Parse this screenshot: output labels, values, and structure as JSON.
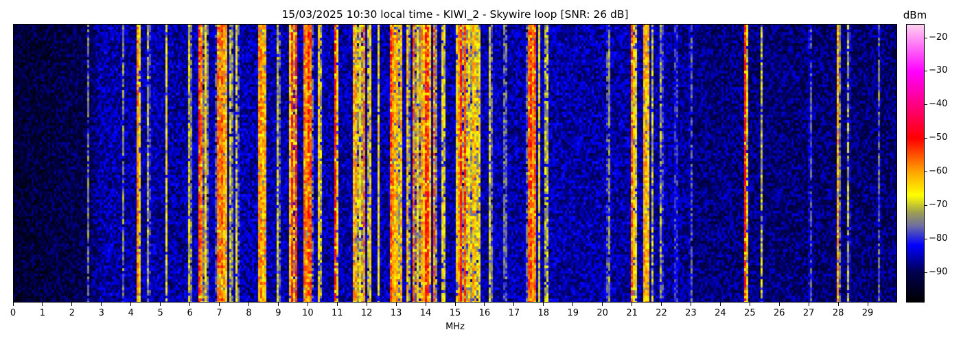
{
  "chart_data": {
    "type": "heatmap",
    "title": "15/03/2025 10:30 local time - KIWI_2 - Skywire loop [SNR: 26 dB]",
    "xlabel": "MHz",
    "xlim": [
      0,
      30
    ],
    "x_ticks": [
      "0",
      "1",
      "2",
      "3",
      "4",
      "5",
      "6",
      "7",
      "8",
      "9",
      "10",
      "11",
      "12",
      "13",
      "14",
      "15",
      "16",
      "17",
      "18",
      "19",
      "20",
      "21",
      "22",
      "23",
      "24",
      "25",
      "26",
      "27",
      "28",
      "29"
    ],
    "colorbar": {
      "label": "dBm",
      "range": [
        -99,
        -16
      ],
      "ticks": [
        "−20",
        "−30",
        "−40",
        "−50",
        "−60",
        "−70",
        "−80",
        "−90"
      ],
      "tick_values": [
        -20,
        -30,
        -40,
        -50,
        -60,
        -70,
        -80,
        -90
      ],
      "colormap": [
        [
          -99,
          "#000000"
        ],
        [
          -90,
          "#000050"
        ],
        [
          -82,
          "#0000ff"
        ],
        [
          -76,
          "#7070a0"
        ],
        [
          -72,
          "#a0a050"
        ],
        [
          -67,
          "#ffff00"
        ],
        [
          -60,
          "#ffa500"
        ],
        [
          -50,
          "#ff0000"
        ],
        [
          -40,
          "#ff0080"
        ],
        [
          -30,
          "#ff00ff"
        ],
        [
          -16,
          "#ffd0f0"
        ]
      ]
    },
    "noise_floor_dbm": [
      [
        0,
        -93
      ],
      [
        2.5,
        -91
      ],
      [
        3,
        -86
      ],
      [
        22,
        -86
      ],
      [
        23,
        -88
      ],
      [
        30,
        -89
      ]
    ],
    "signals_mhz_dbm": [
      [
        2.55,
        -76
      ],
      [
        3.75,
        -74
      ],
      [
        4.25,
        -55
      ],
      [
        4.6,
        -70
      ],
      [
        5.2,
        -66
      ],
      [
        6.0,
        -65
      ],
      [
        6.33,
        -54
      ],
      [
        6.4,
        -56
      ],
      [
        6.55,
        -62
      ],
      [
        6.95,
        -56
      ],
      [
        7.05,
        -54
      ],
      [
        7.12,
        -52
      ],
      [
        7.2,
        -56
      ],
      [
        7.4,
        -66
      ],
      [
        7.6,
        -66
      ],
      [
        8.38,
        -55
      ],
      [
        8.45,
        -54
      ],
      [
        8.55,
        -60
      ],
      [
        9.0,
        -66
      ],
      [
        9.45,
        -50
      ],
      [
        9.6,
        -51
      ],
      [
        9.9,
        -56
      ],
      [
        10.0,
        -50
      ],
      [
        10.1,
        -55
      ],
      [
        10.4,
        -61
      ],
      [
        10.95,
        -50
      ],
      [
        11.6,
        -55
      ],
      [
        11.75,
        -62
      ],
      [
        11.9,
        -56
      ],
      [
        12.1,
        -61
      ],
      [
        12.4,
        -65
      ],
      [
        12.85,
        -50
      ],
      [
        13.0,
        -55
      ],
      [
        13.15,
        -60
      ],
      [
        13.4,
        -61
      ],
      [
        13.6,
        -56
      ],
      [
        13.75,
        -61
      ],
      [
        13.9,
        -55
      ],
      [
        14.0,
        -50
      ],
      [
        14.1,
        -51
      ],
      [
        14.3,
        -56
      ],
      [
        14.6,
        -61
      ],
      [
        15.1,
        -56
      ],
      [
        15.2,
        -50
      ],
      [
        15.35,
        -54
      ],
      [
        15.5,
        -61
      ],
      [
        15.65,
        -56
      ],
      [
        15.8,
        -61
      ],
      [
        16.2,
        -66
      ],
      [
        16.7,
        -70
      ],
      [
        17.5,
        -55
      ],
      [
        17.6,
        -50
      ],
      [
        17.7,
        -55
      ],
      [
        17.85,
        -66
      ],
      [
        18.1,
        -65
      ],
      [
        20.2,
        -70
      ],
      [
        21.0,
        -55
      ],
      [
        21.1,
        -60
      ],
      [
        21.45,
        -55
      ],
      [
        21.52,
        -56
      ],
      [
        21.7,
        -70
      ],
      [
        22.0,
        -70
      ],
      [
        22.5,
        -75
      ],
      [
        23.0,
        -75
      ],
      [
        24.85,
        -50
      ],
      [
        25.4,
        -70
      ],
      [
        27.05,
        -75
      ],
      [
        28.0,
        -60
      ],
      [
        28.35,
        -70
      ],
      [
        29.4,
        -75
      ]
    ]
  }
}
